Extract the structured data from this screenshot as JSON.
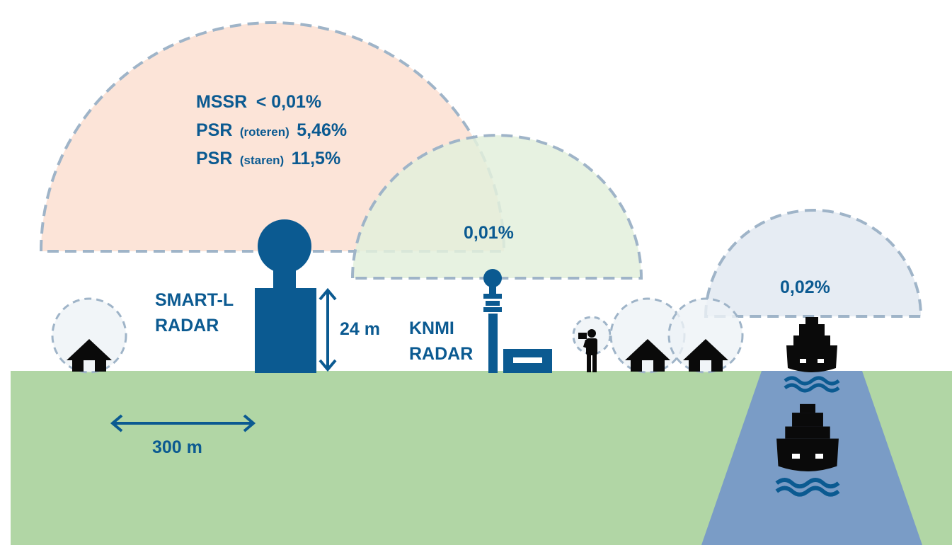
{
  "colors": {
    "ground": "#b1d6a5",
    "water": "#7a9cc6",
    "radar_blue": "#0b5a91",
    "dash": "#9fb4c8",
    "smart_l_zone": "#fce4d8",
    "knmi_zone": "#e3f0dc",
    "ship_zone": "#e6ecf3",
    "small_zone": "#eef2f6",
    "icon_black": "#0a0a0a"
  },
  "smart_l": {
    "zone_lines": [
      {
        "name": "MSSR",
        "note": "",
        "value": "< 0,01%"
      },
      {
        "name": "PSR",
        "note": "(roteren)",
        "value": "5,46%"
      },
      {
        "name": "PSR",
        "note": "(staren)",
        "value": "11,5%"
      }
    ],
    "label_line1": "SMART-L",
    "label_line2": "RADAR",
    "height_label": "24 m"
  },
  "knmi": {
    "zone_value": "0,01%",
    "label_line1": "KNMI",
    "label_line2": "RADAR"
  },
  "ship_zone": {
    "value": "0,02%"
  },
  "scale": {
    "label": "300 m"
  },
  "icons": [
    "house-icon",
    "house-icon",
    "house-icon",
    "person-with-camera-icon",
    "ship-icon",
    "ship-icon",
    "wave-icon"
  ]
}
